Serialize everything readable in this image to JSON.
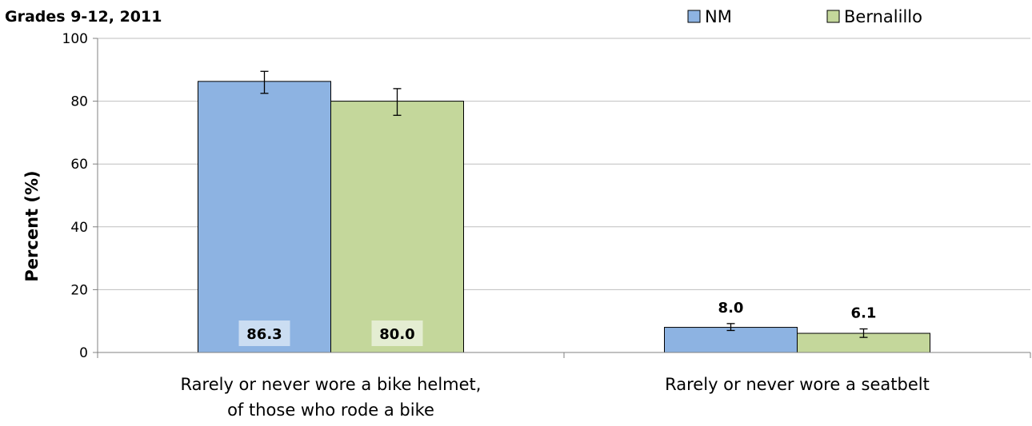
{
  "chart_data": {
    "type": "bar",
    "title": "Grades 9-12, 2011",
    "ylabel": "Percent (%)",
    "xlabel": "",
    "ylim": [
      0,
      100
    ],
    "yticks": [
      0,
      20,
      40,
      60,
      80,
      100
    ],
    "grid": true,
    "legend_position": "top-right",
    "categories": [
      "Rarely or never wore a bike helmet, of those who rode a bike",
      "Rarely or never wore a seatbelt"
    ],
    "category_lines": [
      [
        "Rarely or never wore a bike helmet,",
        "of those who rode a bike"
      ],
      [
        "Rarely or never wore a seatbelt"
      ]
    ],
    "series": [
      {
        "name": "NM",
        "color": "#8db3e2",
        "values": [
          86.3,
          8.0
        ],
        "labels": [
          "86.3",
          "8.0"
        ],
        "error_low": [
          82.5,
          7.0
        ],
        "error_high": [
          89.5,
          9.2
        ]
      },
      {
        "name": "Bernalillo",
        "color": "#c4d79b",
        "values": [
          80.0,
          6.1
        ],
        "labels": [
          "80.0",
          "6.1"
        ],
        "error_low": [
          75.5,
          4.8
        ],
        "error_high": [
          84.0,
          7.5
        ]
      }
    ]
  }
}
